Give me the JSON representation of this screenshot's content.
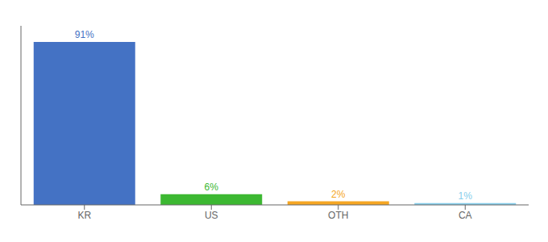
{
  "chart_data": {
    "type": "bar",
    "categories": [
      "KR",
      "US",
      "OTH",
      "CA"
    ],
    "values": [
      91,
      6,
      2,
      1
    ],
    "value_labels": [
      "91%",
      "6%",
      "2%",
      "1%"
    ],
    "colors": [
      "#4472C4",
      "#3CB832",
      "#F5A623",
      "#87CEEB"
    ],
    "ylim": [
      0,
      100
    ],
    "data_labels": true,
    "tick_labels": "x",
    "grid": false
  }
}
